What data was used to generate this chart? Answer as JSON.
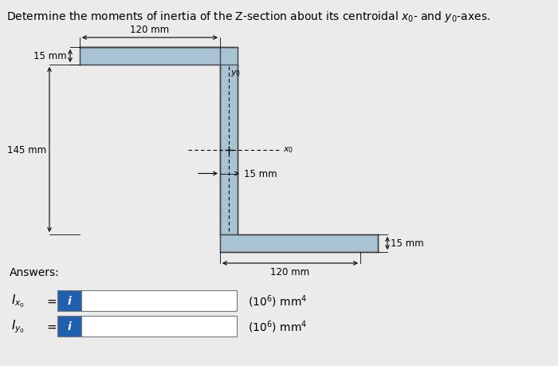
{
  "bg_color": "#ebebeb",
  "shape_color": "#a8c4d4",
  "edge_color": "#444444",
  "title": "Determine the moments of inertia of the Z-section about its centroidal $x_0$- and $y_0$-axes.",
  "dim_120_top": "120 mm",
  "dim_15_left": "15 mm",
  "dim_145": "145 mm",
  "dim_15_mid": "15 mm",
  "dim_120_bot": "120 mm",
  "dim_15_right": "15 mm",
  "answers_label": "Answers:",
  "icon_color": "#2060b0",
  "icon_text": "i",
  "label1": "$I_{x_0}$",
  "label2": "$I_{y_0}$",
  "units": "(10$^6$) mm$^4$",
  "x0_label": "$x_0$",
  "y0_label": "$y_0$"
}
